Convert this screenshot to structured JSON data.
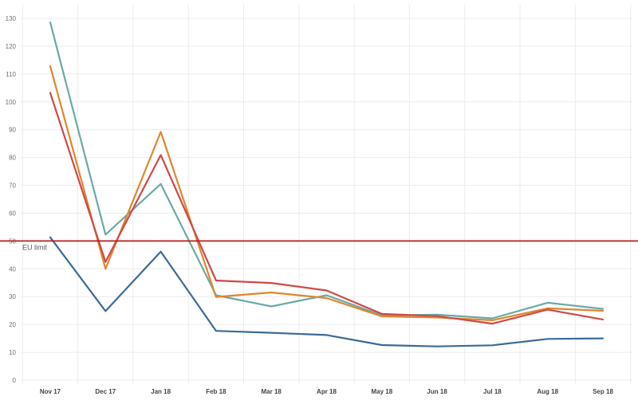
{
  "chart_data": {
    "type": "line",
    "title": "",
    "xlabel": "",
    "ylabel": "",
    "categories": [
      "Nov 17",
      "Dec 17",
      "Jan 18",
      "Feb 18",
      "Mar 18",
      "Apr 18",
      "May 18",
      "Jun 18",
      "Jul 18",
      "Aug 18",
      "Sep 18"
    ],
    "yticks": [
      0,
      10,
      20,
      30,
      40,
      50,
      60,
      70,
      80,
      90,
      100,
      110,
      120,
      130
    ],
    "ylim": [
      0,
      135
    ],
    "grid": true,
    "legend": "none",
    "series": [
      {
        "color": "#6aaaa6",
        "values": [
          128.5,
          52.3,
          70.5,
          30.5,
          26.5,
          30.5,
          23.3,
          23.5,
          22.2,
          27.8,
          25.6
        ]
      },
      {
        "color": "#e0852f",
        "values": [
          112.8,
          40.0,
          89.2,
          29.9,
          31.5,
          29.5,
          22.9,
          22.5,
          21.5,
          25.8,
          24.9
        ]
      },
      {
        "color": "#cf4a45",
        "values": [
          103.2,
          42.5,
          80.9,
          35.8,
          34.9,
          32.2,
          23.8,
          23.0,
          20.3,
          25.3,
          21.8
        ]
      },
      {
        "color": "#3b6b97",
        "values": [
          51.3,
          24.8,
          46.2,
          17.7,
          17.0,
          16.2,
          12.6,
          12.1,
          12.5,
          14.8,
          15.0
        ]
      }
    ],
    "reference_line": {
      "value": 50,
      "label": "EU limit",
      "color": "#b41f1f"
    }
  }
}
